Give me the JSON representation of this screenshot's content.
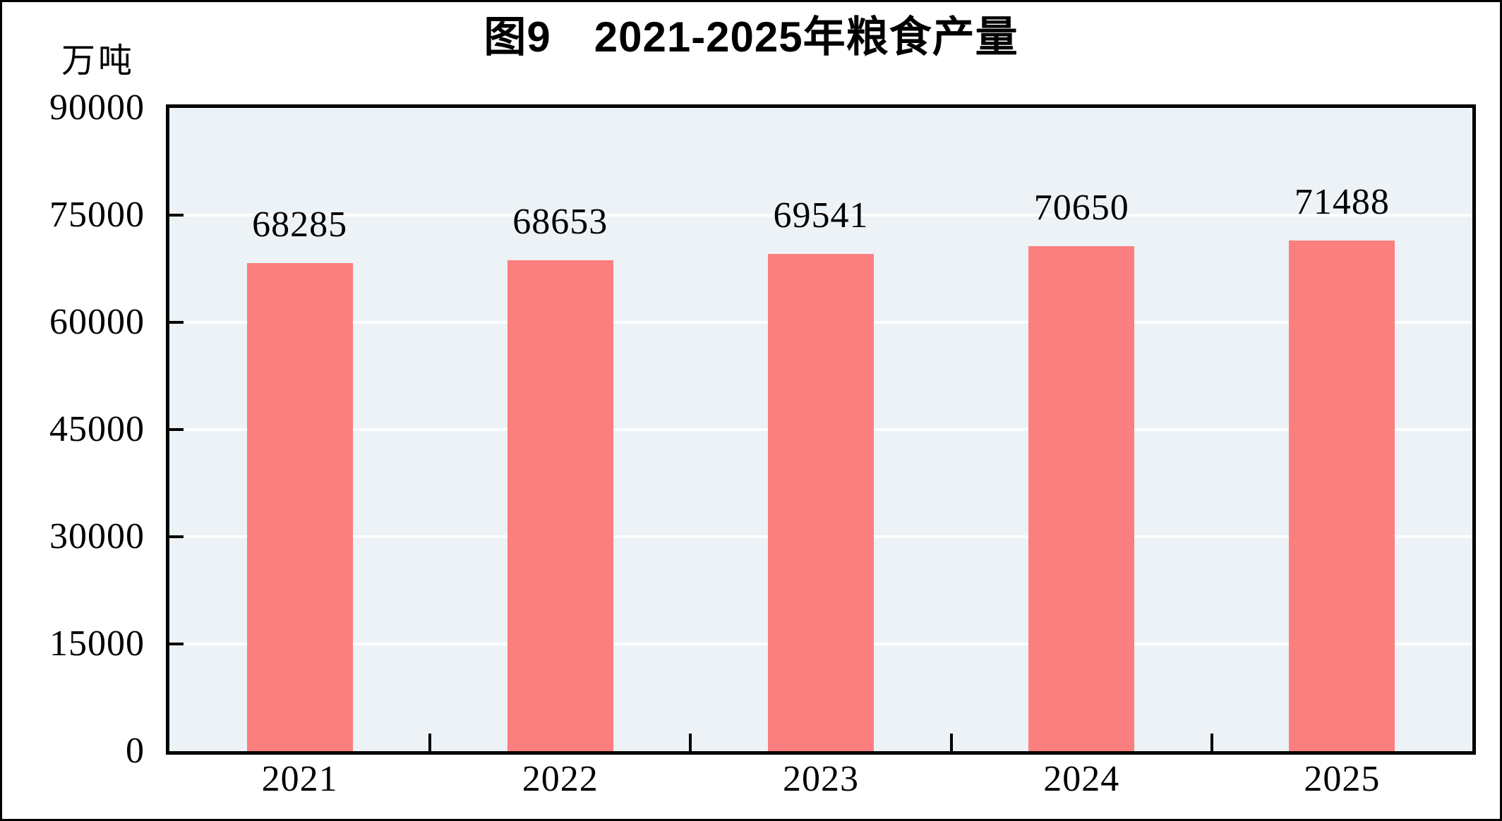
{
  "chart_data": {
    "type": "bar",
    "title": "图9　2021-2025年粮食产量",
    "unit_label": "万吨",
    "categories": [
      "2021",
      "2022",
      "2023",
      "2024",
      "2025"
    ],
    "values": [
      68285,
      68653,
      69541,
      70650,
      71488
    ],
    "value_labels": [
      "68285",
      "68653",
      "69541",
      "70650",
      "71488"
    ],
    "ylim": [
      0,
      90000
    ],
    "yticks": [
      0,
      15000,
      30000,
      45000,
      60000,
      75000,
      90000
    ],
    "ytick_labels": [
      "0",
      "15000",
      "30000",
      "45000",
      "60000",
      "75000",
      "90000"
    ],
    "grid": "horizontal white gridlines at each y tick",
    "legend_position": "none",
    "colors": {
      "bar": "#FB7F7E",
      "plot_background": "#ECF2F5",
      "gridline": "#FFFFFF",
      "axis": "#000000",
      "text": "#000000",
      "page_background": "#FFFFFF"
    }
  }
}
